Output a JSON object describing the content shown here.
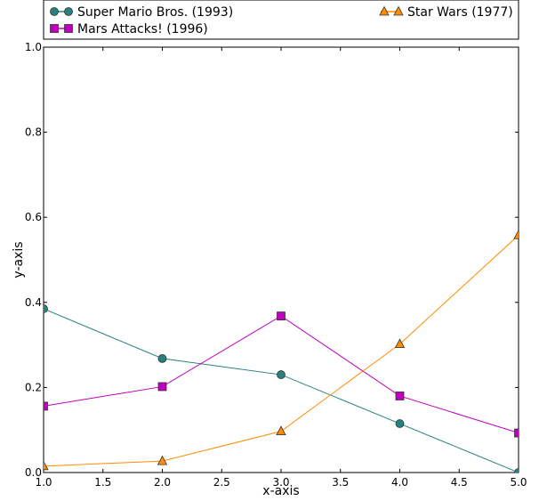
{
  "chart_data": {
    "type": "line",
    "title": "",
    "xlabel": "x-axis",
    "ylabel": "y-axis",
    "xlim": [
      1.0,
      5.0
    ],
    "ylim": [
      0.0,
      1.0
    ],
    "xticks": [
      "1.0",
      "1.5",
      "2.0",
      "2.5",
      "3.0",
      "3.5",
      "4.0",
      "4.5",
      "5.0"
    ],
    "yticks": [
      "0.0",
      "0.2",
      "0.4",
      "0.6",
      "0.8",
      "1.0"
    ],
    "grid": false,
    "legend_position": "top",
    "x": [
      1,
      2,
      3,
      4,
      5
    ],
    "series": [
      {
        "name": "Super Mario Bros. (1993)",
        "values": [
          0.385,
          0.268,
          0.23,
          0.115,
          0.0
        ],
        "color": "#2a7f7f",
        "marker": "circle"
      },
      {
        "name": "Mars Attacks! (1996)",
        "values": [
          0.156,
          0.202,
          0.368,
          0.18,
          0.093
        ],
        "color": "#bf00bf",
        "marker": "square"
      },
      {
        "name": "Star Wars (1977)",
        "values": [
          0.015,
          0.027,
          0.097,
          0.302,
          0.558
        ],
        "color": "#ff8c00",
        "marker": "triangle"
      }
    ]
  }
}
